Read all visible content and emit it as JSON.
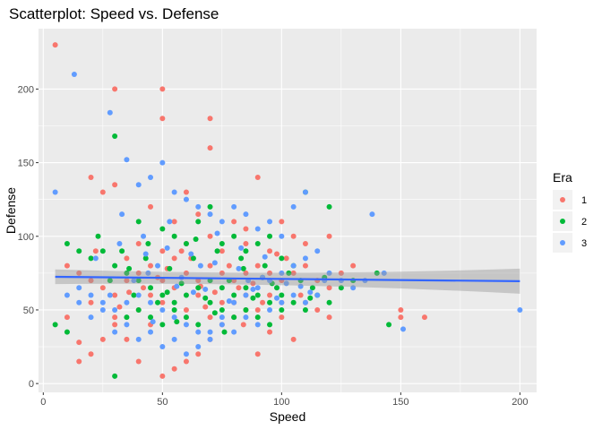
{
  "chart_data": {
    "type": "scatter",
    "title": "Scatterplot: Speed vs. Defense",
    "xlabel": "Speed",
    "ylabel": "Defense",
    "xlim": [
      -2,
      207
    ],
    "ylim": [
      -6,
      241
    ],
    "x_ticks": [
      0,
      50,
      100,
      150,
      200
    ],
    "y_ticks": [
      0,
      50,
      100,
      150,
      200
    ],
    "grid": true,
    "legend": {
      "title": "Era",
      "position": "right"
    },
    "colors": {
      "1": "#F8766D",
      "2": "#00BA38",
      "3": "#619CFF",
      "smooth": "#3366FF",
      "band": "#999999",
      "panel": "#EBEBEB"
    },
    "smooth_line": {
      "method": "lm",
      "x": [
        5,
        200
      ],
      "y": [
        72.5,
        69.5
      ],
      "band_halfwidth_ends": [
        5,
        8.5
      ],
      "band_halfwidth_mid": 1.5
    },
    "series": [
      {
        "name": "1",
        "points": [
          [
            5,
            230
          ],
          [
            30,
            200
          ],
          [
            50,
            200
          ],
          [
            50,
            180
          ],
          [
            70,
            180
          ],
          [
            70,
            160
          ],
          [
            30,
            135
          ],
          [
            20,
            140
          ],
          [
            25,
            130
          ],
          [
            60,
            130
          ],
          [
            90,
            140
          ],
          [
            45,
            120
          ],
          [
            55,
            110
          ],
          [
            65,
            115
          ],
          [
            80,
            110
          ],
          [
            85,
            105
          ],
          [
            100,
            110
          ],
          [
            40,
            95
          ],
          [
            50,
            90
          ],
          [
            60,
            95
          ],
          [
            70,
            100
          ],
          [
            75,
            90
          ],
          [
            85,
            95
          ],
          [
            95,
            90
          ],
          [
            105,
            100
          ],
          [
            110,
            95
          ],
          [
            120,
            100
          ],
          [
            10,
            80
          ],
          [
            15,
            75
          ],
          [
            20,
            70
          ],
          [
            25,
            65
          ],
          [
            30,
            60
          ],
          [
            35,
            70
          ],
          [
            40,
            75
          ],
          [
            45,
            80
          ],
          [
            50,
            70
          ],
          [
            55,
            65
          ],
          [
            60,
            75
          ],
          [
            65,
            70
          ],
          [
            70,
            80
          ],
          [
            75,
            75
          ],
          [
            80,
            70
          ],
          [
            85,
            75
          ],
          [
            90,
            80
          ],
          [
            95,
            75
          ],
          [
            100,
            70
          ],
          [
            105,
            75
          ],
          [
            110,
            80
          ],
          [
            115,
            70
          ],
          [
            120,
            65
          ],
          [
            125,
            75
          ],
          [
            130,
            80
          ],
          [
            15,
            28
          ],
          [
            15,
            15
          ],
          [
            20,
            20
          ],
          [
            25,
            30
          ],
          [
            30,
            40
          ],
          [
            35,
            30
          ],
          [
            40,
            15
          ],
          [
            45,
            40
          ],
          [
            50,
            5
          ],
          [
            55,
            10
          ],
          [
            60,
            15
          ],
          [
            65,
            20
          ],
          [
            70,
            30
          ],
          [
            75,
            40
          ],
          [
            80,
            45
          ],
          [
            85,
            50
          ],
          [
            90,
            20
          ],
          [
            95,
            35
          ],
          [
            100,
            45
          ],
          [
            105,
            30
          ],
          [
            110,
            55
          ],
          [
            115,
            50
          ],
          [
            120,
            45
          ],
          [
            150,
            50
          ],
          [
            150,
            45
          ],
          [
            160,
            45
          ],
          [
            10,
            45
          ],
          [
            20,
            55
          ],
          [
            30,
            45
          ],
          [
            40,
            50
          ],
          [
            50,
            55
          ],
          [
            60,
            50
          ],
          [
            70,
            45
          ],
          [
            80,
            55
          ],
          [
            90,
            50
          ],
          [
            100,
            55
          ],
          [
            35,
            85
          ],
          [
            45,
            60
          ],
          [
            55,
            85
          ],
          [
            65,
            60
          ],
          [
            75,
            55
          ],
          [
            85,
            60
          ],
          [
            95,
            60
          ],
          [
            22,
            90
          ],
          [
            42,
            65
          ],
          [
            62,
            85
          ],
          [
            82,
            65
          ],
          [
            102,
            85
          ],
          [
            58,
            90
          ],
          [
            78,
            80
          ],
          [
            98,
            88
          ],
          [
            36,
            62
          ],
          [
            48,
            72
          ],
          [
            66,
            66
          ],
          [
            88,
            68
          ],
          [
            108,
            60
          ],
          [
            72,
            62
          ],
          [
            92,
            55
          ],
          [
            52,
            78
          ],
          [
            32,
            52
          ],
          [
            84,
            40
          ],
          [
            68,
            52
          ]
        ]
      },
      {
        "name": "2",
        "points": [
          [
            30,
            168
          ],
          [
            40,
            110
          ],
          [
            50,
            105
          ],
          [
            55,
            100
          ],
          [
            60,
            95
          ],
          [
            65,
            110
          ],
          [
            70,
            120
          ],
          [
            75,
            95
          ],
          [
            80,
            100
          ],
          [
            85,
            90
          ],
          [
            90,
            95
          ],
          [
            95,
            100
          ],
          [
            100,
            85
          ],
          [
            105,
            80
          ],
          [
            110,
            130
          ],
          [
            120,
            120
          ],
          [
            10,
            95
          ],
          [
            15,
            90
          ],
          [
            20,
            85
          ],
          [
            25,
            90
          ],
          [
            30,
            80
          ],
          [
            35,
            75
          ],
          [
            40,
            70
          ],
          [
            45,
            65
          ],
          [
            50,
            60
          ],
          [
            55,
            55
          ],
          [
            60,
            60
          ],
          [
            65,
            65
          ],
          [
            70,
            70
          ],
          [
            75,
            65
          ],
          [
            80,
            60
          ],
          [
            85,
            65
          ],
          [
            90,
            60
          ],
          [
            95,
            55
          ],
          [
            100,
            60
          ],
          [
            105,
            55
          ],
          [
            110,
            50
          ],
          [
            115,
            60
          ],
          [
            120,
            55
          ],
          [
            125,
            65
          ],
          [
            130,
            70
          ],
          [
            140,
            75
          ],
          [
            145,
            40
          ],
          [
            5,
            40
          ],
          [
            10,
            35
          ],
          [
            30,
            5
          ],
          [
            35,
            45
          ],
          [
            40,
            50
          ],
          [
            45,
            45
          ],
          [
            50,
            40
          ],
          [
            55,
            50
          ],
          [
            60,
            45
          ],
          [
            65,
            40
          ],
          [
            70,
            55
          ],
          [
            75,
            50
          ],
          [
            80,
            45
          ],
          [
            85,
            50
          ],
          [
            90,
            45
          ],
          [
            95,
            40
          ],
          [
            100,
            50
          ],
          [
            23,
            100
          ],
          [
            33,
            90
          ],
          [
            43,
            85
          ],
          [
            53,
            78
          ],
          [
            63,
            85
          ],
          [
            73,
            90
          ],
          [
            83,
            85
          ],
          [
            93,
            80
          ],
          [
            103,
            75
          ],
          [
            113,
            65
          ],
          [
            28,
            70
          ],
          [
            38,
            60
          ],
          [
            48,
            55
          ],
          [
            58,
            68
          ],
          [
            68,
            58
          ],
          [
            78,
            70
          ],
          [
            88,
            58
          ],
          [
            98,
            65
          ],
          [
            108,
            70
          ],
          [
            44,
            95
          ],
          [
            64,
            98
          ],
          [
            84,
            78
          ],
          [
            52,
            62
          ],
          [
            72,
            48
          ],
          [
            92,
            72
          ],
          [
            112,
            58
          ],
          [
            36,
            78
          ],
          [
            56,
            42
          ],
          [
            76,
            35
          ],
          [
            96,
            68
          ],
          [
            118,
            72
          ]
        ]
      },
      {
        "name": "3",
        "points": [
          [
            5,
            130
          ],
          [
            13,
            210
          ],
          [
            28,
            184
          ],
          [
            35,
            152
          ],
          [
            40,
            135
          ],
          [
            45,
            140
          ],
          [
            50,
            150
          ],
          [
            55,
            130
          ],
          [
            60,
            125
          ],
          [
            65,
            120
          ],
          [
            70,
            115
          ],
          [
            75,
            110
          ],
          [
            80,
            120
          ],
          [
            85,
            115
          ],
          [
            90,
            105
          ],
          [
            95,
            110
          ],
          [
            100,
            100
          ],
          [
            105,
            120
          ],
          [
            110,
            130
          ],
          [
            138,
            115
          ],
          [
            10,
            60
          ],
          [
            15,
            65
          ],
          [
            20,
            60
          ],
          [
            25,
            55
          ],
          [
            30,
            50
          ],
          [
            35,
            55
          ],
          [
            40,
            60
          ],
          [
            45,
            55
          ],
          [
            50,
            50
          ],
          [
            55,
            45
          ],
          [
            60,
            40
          ],
          [
            65,
            35
          ],
          [
            70,
            30
          ],
          [
            75,
            40
          ],
          [
            80,
            35
          ],
          [
            85,
            45
          ],
          [
            90,
            40
          ],
          [
            95,
            50
          ],
          [
            100,
            55
          ],
          [
            105,
            60
          ],
          [
            110,
            55
          ],
          [
            115,
            60
          ],
          [
            120,
            75
          ],
          [
            125,
            70
          ],
          [
            130,
            65
          ],
          [
            135,
            70
          ],
          [
            143,
            75
          ],
          [
            151,
            37
          ],
          [
            200,
            50
          ],
          [
            15,
            55
          ],
          [
            20,
            45
          ],
          [
            25,
            50
          ],
          [
            30,
            35
          ],
          [
            35,
            40
          ],
          [
            40,
            30
          ],
          [
            45,
            35
          ],
          [
            50,
            25
          ],
          [
            55,
            30
          ],
          [
            60,
            20
          ],
          [
            65,
            25
          ],
          [
            70,
            35
          ],
          [
            75,
            45
          ],
          [
            80,
            55
          ],
          [
            85,
            60
          ],
          [
            90,
            65
          ],
          [
            95,
            70
          ],
          [
            100,
            75
          ],
          [
            105,
            80
          ],
          [
            110,
            85
          ],
          [
            115,
            90
          ],
          [
            22,
            85
          ],
          [
            32,
            95
          ],
          [
            42,
            100
          ],
          [
            52,
            92
          ],
          [
            62,
            88
          ],
          [
            72,
            82
          ],
          [
            82,
            78
          ],
          [
            92,
            72
          ],
          [
            102,
            68
          ],
          [
            112,
            62
          ],
          [
            28,
            60
          ],
          [
            38,
            70
          ],
          [
            48,
            80
          ],
          [
            58,
            72
          ],
          [
            68,
            64
          ],
          [
            78,
            56
          ],
          [
            88,
            64
          ],
          [
            98,
            58
          ],
          [
            108,
            66
          ],
          [
            118,
            70
          ],
          [
            33,
            115
          ],
          [
            43,
            88
          ],
          [
            53,
            110
          ],
          [
            63,
            62
          ],
          [
            73,
            102
          ],
          [
            83,
            92
          ],
          [
            93,
            86
          ],
          [
            44,
            75
          ],
          [
            66,
            80
          ],
          [
            86,
            70
          ],
          [
            56,
            66
          ],
          [
            46,
            42
          ]
        ]
      }
    ]
  }
}
